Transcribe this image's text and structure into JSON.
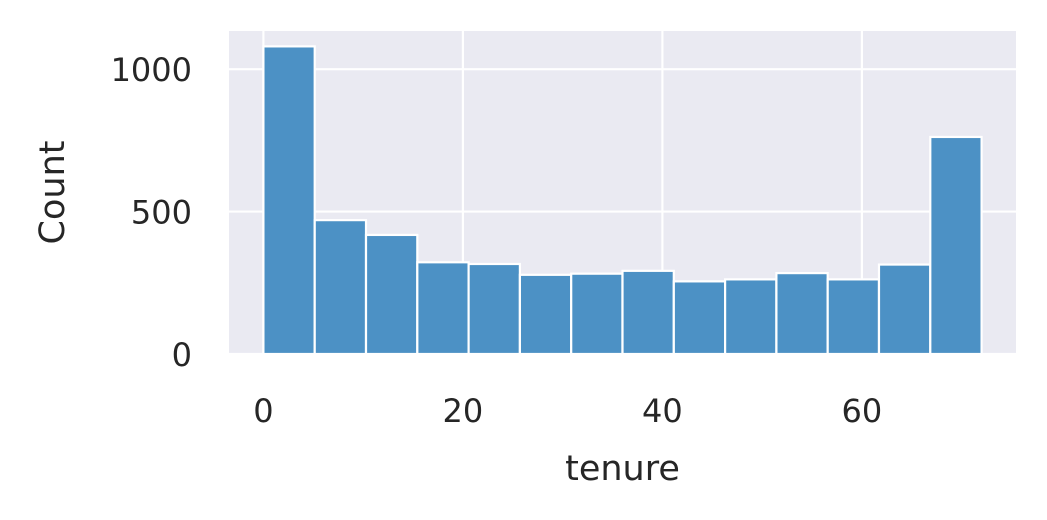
{
  "chart_data": {
    "type": "bar",
    "title": "",
    "xlabel": "tenure",
    "ylabel": "Count",
    "bin_edges": [
      0,
      5.143,
      10.286,
      15.429,
      20.571,
      25.714,
      30.857,
      36.0,
      41.143,
      46.286,
      51.429,
      56.571,
      61.714,
      66.857,
      72.0
    ],
    "values": [
      1080,
      470,
      418,
      322,
      316,
      278,
      282,
      292,
      255,
      262,
      284,
      262,
      314,
      762
    ],
    "x_ticks": [
      0,
      20,
      40,
      60
    ],
    "y_ticks": [
      0,
      500,
      1000
    ],
    "xlim": [
      -3.45,
      75.45
    ],
    "ylim": [
      0,
      1134
    ],
    "grid": true,
    "colors": {
      "bar": "#4c91c5",
      "bar_edge": "#ffffff",
      "plot_background": "#eaeaf2",
      "grid": "#ffffff",
      "text": "#262626"
    }
  }
}
